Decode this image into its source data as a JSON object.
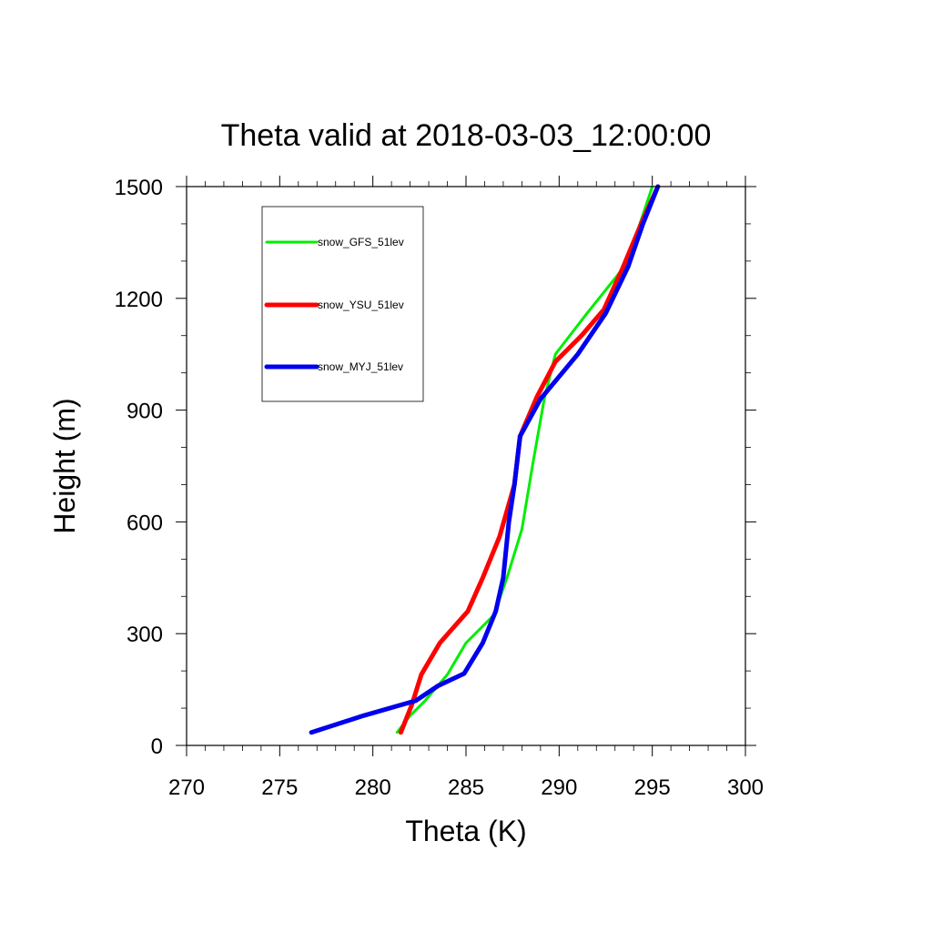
{
  "chart_data": {
    "type": "line",
    "title": "Theta valid at 2018-03-03_12:00:00",
    "xlabel": "Theta (K)",
    "ylabel": "Height (m)",
    "xlim": [
      270,
      300
    ],
    "ylim": [
      0,
      1500
    ],
    "x_ticks": [
      270,
      275,
      280,
      285,
      290,
      295,
      300
    ],
    "y_ticks": [
      0,
      300,
      600,
      900,
      1200,
      1500
    ],
    "x_tick_labels": [
      "270",
      "275",
      "280",
      "285",
      "290",
      "295",
      "300"
    ],
    "y_tick_labels": [
      "0",
      "300",
      "600",
      "900",
      "1200",
      "1500"
    ],
    "grid": false,
    "legend_position": "top-left",
    "series": [
      {
        "name": "snow_GFS_51lev",
        "color": "#00ee00",
        "points": [
          [
            281.3,
            35
          ],
          [
            282.0,
            80
          ],
          [
            282.8,
            120
          ],
          [
            284.0,
            190
          ],
          [
            285.0,
            275
          ],
          [
            286.5,
            350
          ],
          [
            287.2,
            450
          ],
          [
            288.0,
            580
          ],
          [
            288.6,
            760
          ],
          [
            289.2,
            930
          ],
          [
            289.8,
            1050
          ],
          [
            291.5,
            1160
          ],
          [
            293.5,
            1285
          ],
          [
            294.2,
            1380
          ],
          [
            295.0,
            1500
          ]
        ]
      },
      {
        "name": "snow_YSU_51lev",
        "color": "#ff0000",
        "points": [
          [
            281.5,
            35
          ],
          [
            282.1,
            110
          ],
          [
            282.6,
            190
          ],
          [
            283.6,
            275
          ],
          [
            285.1,
            360
          ],
          [
            285.9,
            450
          ],
          [
            286.8,
            560
          ],
          [
            287.6,
            700
          ],
          [
            287.9,
            830
          ],
          [
            288.8,
            935
          ],
          [
            289.8,
            1030
          ],
          [
            291.2,
            1100
          ],
          [
            292.4,
            1170
          ],
          [
            293.4,
            1280
          ],
          [
            294.4,
            1400
          ],
          [
            295.3,
            1500
          ]
        ]
      },
      {
        "name": "snow_MYJ_51lev",
        "color": "#0000ee",
        "points": [
          [
            276.7,
            35
          ],
          [
            279.5,
            80
          ],
          [
            282.3,
            120
          ],
          [
            283.5,
            160
          ],
          [
            284.9,
            193
          ],
          [
            285.9,
            275
          ],
          [
            286.6,
            360
          ],
          [
            287.0,
            450
          ],
          [
            287.3,
            600
          ],
          [
            287.6,
            700
          ],
          [
            287.9,
            830
          ],
          [
            289.0,
            930
          ],
          [
            291.0,
            1050
          ],
          [
            292.5,
            1160
          ],
          [
            293.7,
            1285
          ],
          [
            294.5,
            1400
          ],
          [
            295.3,
            1500
          ]
        ]
      }
    ]
  }
}
